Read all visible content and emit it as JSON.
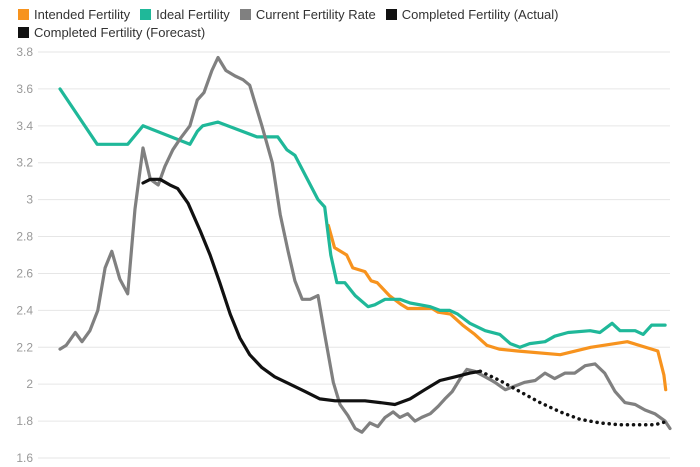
{
  "chart_data": {
    "type": "line",
    "title": "",
    "xlabel": "",
    "ylabel": "",
    "ylim": [
      1.6,
      3.8
    ],
    "yticks": [
      "3.8",
      "3.6",
      "3.4",
      "3.2",
      "3",
      "2.8",
      "2.6",
      "2.4",
      "2.2",
      "2",
      "1.8",
      "1.6"
    ],
    "xlim": [
      0,
      100
    ],
    "grid": true,
    "legend_placement": "top-left",
    "series": [
      {
        "name": "Intended Fertility",
        "color": "#F7931E",
        "style": "solid",
        "x": [
          44,
          45,
          47,
          48,
          50,
          51,
          52,
          54,
          56,
          57,
          61,
          62,
          64,
          66,
          68,
          70,
          72,
          75,
          82,
          87,
          93,
          98,
          99,
          99.3
        ],
        "y": [
          2.86,
          2.74,
          2.7,
          2.63,
          2.61,
          2.56,
          2.55,
          2.48,
          2.43,
          2.41,
          2.41,
          2.39,
          2.38,
          2.32,
          2.27,
          2.21,
          2.19,
          2.18,
          2.16,
          2.2,
          2.23,
          2.18,
          2.05,
          1.97
        ]
      },
      {
        "name": "Ideal Fertility",
        "color": "#1FB899",
        "style": "solid",
        "x": [
          0,
          6.1,
          11.1,
          13.6,
          21.3,
          22.5,
          23.4,
          25.9,
          32.3,
          35.7,
          37.2,
          38.5,
          42.3,
          43.4,
          44.4,
          45.4,
          46.7,
          48.4,
          50.5,
          51.6,
          53.3,
          55.7,
          57.4,
          60.7,
          62.3,
          63.9,
          65.2,
          67.2,
          69.7,
          72.1,
          73.8,
          75.4,
          77,
          79.5,
          81.1,
          83.3,
          86.9,
          88.5,
          90.5,
          91.8,
          94.3,
          95.6,
          97,
          99.2
        ],
        "y": [
          3.6,
          3.3,
          3.3,
          3.4,
          3.3,
          3.37,
          3.4,
          3.42,
          3.34,
          3.34,
          3.27,
          3.24,
          3.0,
          2.96,
          2.7,
          2.55,
          2.55,
          2.48,
          2.42,
          2.43,
          2.46,
          2.46,
          2.44,
          2.42,
          2.4,
          2.4,
          2.38,
          2.33,
          2.29,
          2.27,
          2.22,
          2.2,
          2.22,
          2.23,
          2.26,
          2.28,
          2.29,
          2.28,
          2.33,
          2.29,
          2.29,
          2.27,
          2.32,
          2.32
        ]
      },
      {
        "name": "Current Fertility Rate",
        "color": "#808080",
        "style": "solid",
        "x": [
          0,
          1,
          2.5,
          3.6,
          4.9,
          6.2,
          7.4,
          8.5,
          9.8,
          11.1,
          12.3,
          13.6,
          14.8,
          16.1,
          17.2,
          18.5,
          19.7,
          21.3,
          22.5,
          23.6,
          24.9,
          25.9,
          27.2,
          28.7,
          30,
          31.1,
          33.1,
          34.8,
          36.1,
          37.4,
          38.5,
          39.7,
          41,
          42.3,
          43.4,
          44.8,
          45.9,
          47.2,
          48.4,
          49.5,
          50.8,
          52.1,
          53.3,
          54.6,
          55.7,
          57,
          58.2,
          59.3,
          60.7,
          62,
          63.1,
          64.3,
          65.6,
          66.7,
          68,
          69.7,
          71.3,
          73,
          74.6,
          76.2,
          77.9,
          79.5,
          81.1,
          82.8,
          84.4,
          86.1,
          87.7,
          89.3,
          91,
          92.6,
          94.3,
          95.9,
          97.5,
          99.2,
          100
        ],
        "y": [
          2.19,
          2.21,
          2.28,
          2.23,
          2.29,
          2.4,
          2.63,
          2.72,
          2.57,
          2.49,
          2.95,
          3.28,
          3.11,
          3.08,
          3.18,
          3.27,
          3.33,
          3.4,
          3.54,
          3.58,
          3.7,
          3.77,
          3.7,
          3.67,
          3.65,
          3.62,
          3.4,
          3.2,
          2.92,
          2.72,
          2.56,
          2.46,
          2.46,
          2.48,
          2.27,
          2.01,
          1.89,
          1.83,
          1.76,
          1.74,
          1.79,
          1.77,
          1.82,
          1.85,
          1.82,
          1.84,
          1.8,
          1.82,
          1.84,
          1.88,
          1.92,
          1.96,
          2.03,
          2.08,
          2.07,
          2.04,
          2.01,
          1.97,
          1.99,
          2.01,
          2.02,
          2.06,
          2.03,
          2.06,
          2.06,
          2.1,
          2.11,
          2.06,
          1.96,
          1.9,
          1.89,
          1.86,
          1.84,
          1.8,
          1.76
        ]
      },
      {
        "name": "Completed Fertility (Actual)",
        "color": "#111111",
        "style": "solid",
        "x": [
          13.6,
          14.8,
          16.4,
          18,
          19.3,
          21,
          23,
          24.6,
          26.2,
          27.9,
          29.5,
          31.1,
          33.1,
          35.2,
          37.7,
          40.2,
          42.6,
          45.1,
          47.5,
          50,
          52.5,
          54.9,
          57.4,
          59.8,
          62.3,
          64.8,
          67.2,
          68.9
        ],
        "y": [
          3.09,
          3.11,
          3.11,
          3.08,
          3.06,
          2.98,
          2.83,
          2.7,
          2.55,
          2.38,
          2.25,
          2.16,
          2.09,
          2.04,
          2.0,
          1.96,
          1.92,
          1.91,
          1.91,
          1.91,
          1.9,
          1.89,
          1.92,
          1.97,
          2.02,
          2.04,
          2.06,
          2.07
        ]
      },
      {
        "name": "Completed Fertility (Forecast)",
        "color": "#111111",
        "style": "dotted",
        "x": [
          68.9,
          72.1,
          75.4,
          78.7,
          82,
          85.2,
          88.5,
          91.8,
          95.1,
          97.5,
          99.7
        ],
        "y": [
          2.07,
          2.02,
          1.96,
          1.9,
          1.85,
          1.81,
          1.79,
          1.78,
          1.78,
          1.78,
          1.8
        ]
      }
    ]
  }
}
